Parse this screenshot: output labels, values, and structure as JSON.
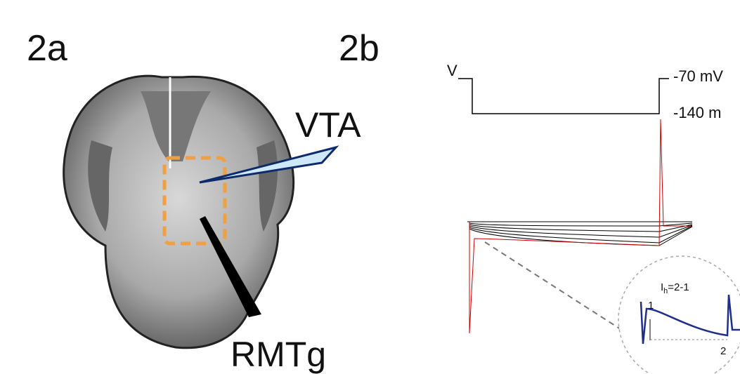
{
  "panels": [
    {
      "label": "2a",
      "annotations": [
        "VTA",
        "RMTg"
      ]
    },
    {
      "label": "2b",
      "voltage_label": "V",
      "levels": [
        "-70 mV",
        "-140 m"
      ],
      "inset": {
        "title_main": "I",
        "title_sub": "h",
        "title_rest": "=2-1",
        "points": [
          "1",
          "2"
        ]
      }
    }
  ]
}
